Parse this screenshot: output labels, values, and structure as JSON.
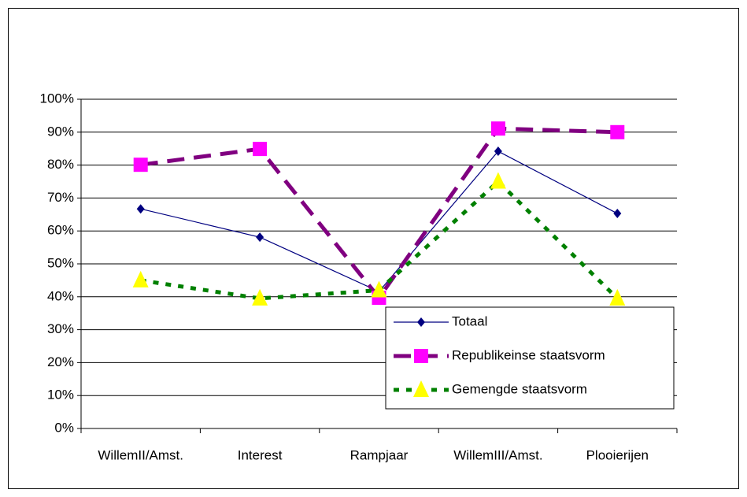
{
  "chart_data": {
    "type": "line",
    "categories": [
      "WillemII/Amst.",
      "Interest",
      "Rampjaar",
      "WillemIII/Amst.",
      "Plooierijen"
    ],
    "series": [
      {
        "name": "Totaal",
        "color": "#000080",
        "marker": "diamond",
        "marker_color": "#000080",
        "line_style": "solid",
        "values": [
          66.7,
          58.1,
          41.6,
          84.2,
          65.3
        ]
      },
      {
        "name": "Republikeinse staatsvorm",
        "color": "#800080",
        "marker": "square",
        "marker_color": "#ff00ff",
        "line_style": "dashed",
        "values": [
          80.1,
          84.9,
          39.7,
          91.1,
          90
        ]
      },
      {
        "name": "Gemengde staatsvorm",
        "color": "#008000",
        "marker": "triangle",
        "marker_color": "#ffff00",
        "line_style": "dotted",
        "values": [
          45,
          39.5,
          42,
          75,
          39.5
        ]
      }
    ],
    "ylim": [
      0,
      100
    ],
    "yticks": [
      {
        "value": 0,
        "label": "0%"
      },
      {
        "value": 10,
        "label": "10%"
      },
      {
        "value": 20,
        "label": "20%"
      },
      {
        "value": 30,
        "label": "30%"
      },
      {
        "value": 40,
        "label": "40%"
      },
      {
        "value": 50,
        "label": "50%"
      },
      {
        "value": 60,
        "label": "60%"
      },
      {
        "value": 70,
        "label": "70%"
      },
      {
        "value": 80,
        "label": "80%"
      },
      {
        "value": 90,
        "label": "90%"
      },
      {
        "value": 100,
        "label": "100%"
      }
    ],
    "grid": true,
    "legend": "lower right"
  }
}
